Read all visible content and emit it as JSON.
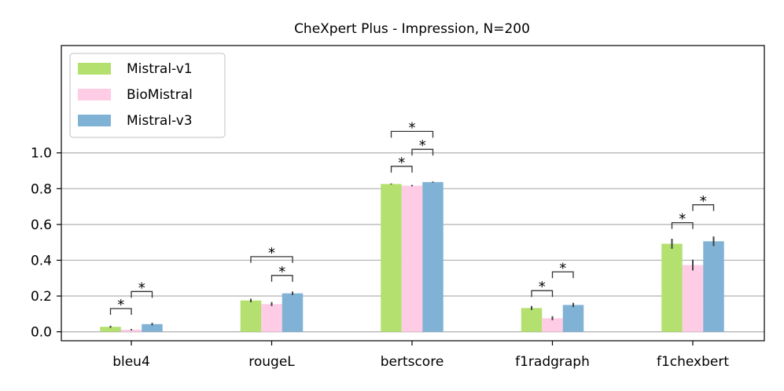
{
  "chart_data": {
    "type": "bar",
    "title": "CheXpert Plus - Impression, N=200",
    "xlabel": "",
    "ylabel": "",
    "ylim": [
      -0.05,
      1.6
    ],
    "yticks": [
      "0.0",
      "0.2",
      "0.4",
      "0.6",
      "0.8",
      "1.0"
    ],
    "grid": "y",
    "legend_position": "top-left",
    "categories": [
      "bleu4",
      "rougeL",
      "bertscore",
      "f1radgraph",
      "f1chexbert"
    ],
    "series": [
      {
        "name": "Mistral-v1",
        "color": "#b3e06e",
        "values": [
          0.028,
          0.175,
          0.826,
          0.133,
          0.492
        ],
        "errors": [
          0.006,
          0.01,
          0.003,
          0.011,
          0.028
        ]
      },
      {
        "name": "BioMistral",
        "color": "#ffcce6",
        "values": [
          0.012,
          0.155,
          0.817,
          0.076,
          0.373
        ],
        "errors": [
          0.004,
          0.011,
          0.004,
          0.011,
          0.03
        ]
      },
      {
        "name": "Mistral-v3",
        "color": "#80b2d6",
        "values": [
          0.043,
          0.215,
          0.837,
          0.15,
          0.506
        ],
        "errors": [
          0.007,
          0.01,
          0.003,
          0.012,
          0.027
        ]
      }
    ],
    "significance": [
      {
        "category": 0,
        "from": 0,
        "to": 1,
        "y": 0.13,
        "label": "*"
      },
      {
        "category": 0,
        "from": 1,
        "to": 2,
        "y": 0.225,
        "label": "*"
      },
      {
        "category": 1,
        "from": 1,
        "to": 2,
        "y": 0.315,
        "label": "*"
      },
      {
        "category": 1,
        "from": 0,
        "to": 2,
        "y": 0.42,
        "label": "*"
      },
      {
        "category": 2,
        "from": 0,
        "to": 1,
        "y": 0.925,
        "label": "*"
      },
      {
        "category": 2,
        "from": 1,
        "to": 2,
        "y": 1.02,
        "label": "*"
      },
      {
        "category": 2,
        "from": 0,
        "to": 2,
        "y": 1.12,
        "label": "*"
      },
      {
        "category": 3,
        "from": 0,
        "to": 1,
        "y": 0.23,
        "label": "*"
      },
      {
        "category": 3,
        "from": 1,
        "to": 2,
        "y": 0.335,
        "label": "*"
      },
      {
        "category": 4,
        "from": 0,
        "to": 1,
        "y": 0.61,
        "label": "*"
      },
      {
        "category": 4,
        "from": 1,
        "to": 2,
        "y": 0.71,
        "label": "*"
      }
    ]
  }
}
